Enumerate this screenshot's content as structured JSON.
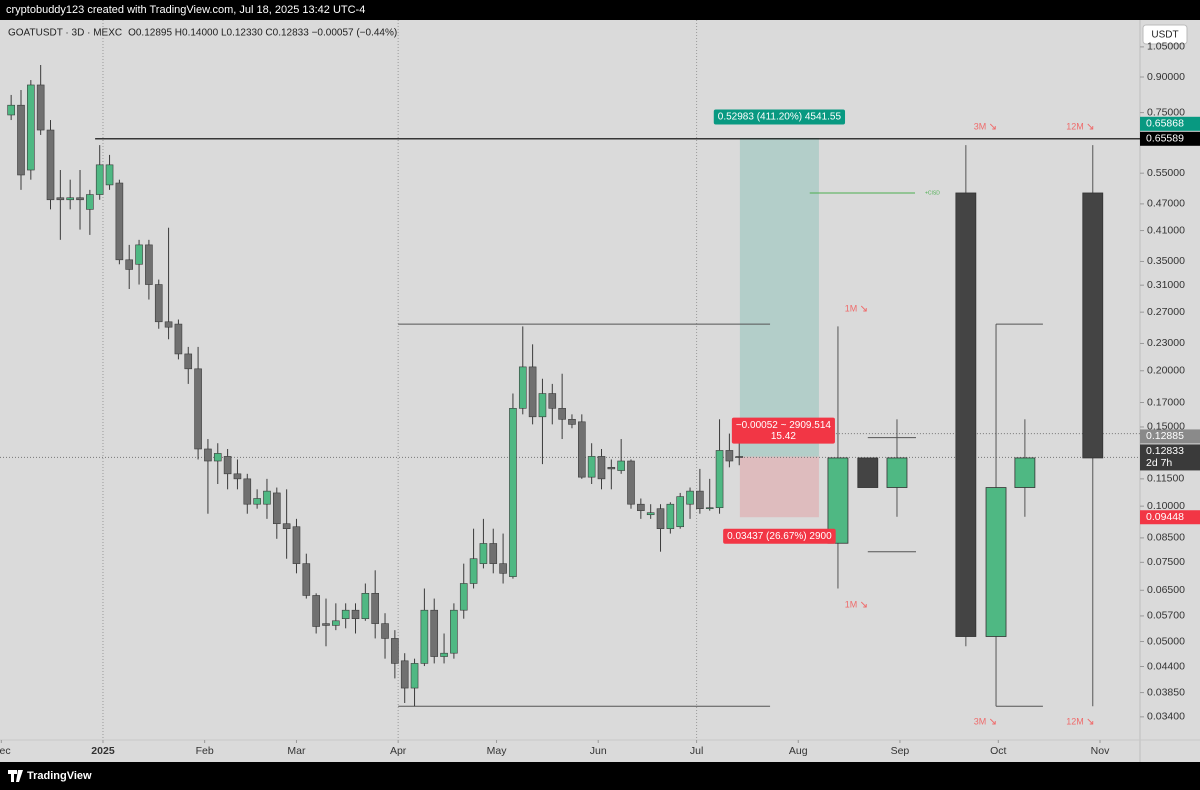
{
  "header": {
    "credit": "cryptobuddy123 created with TradingView.com, Jul 18, 2025 13:42 UTC-4"
  },
  "footer": {
    "brand": "TradingView"
  },
  "chart_data": {
    "type": "candlestick",
    "title": "GOATUSDT · 3D · MEXC",
    "subtitle": "O0.12895 H0.14000 L0.12330 C0.12833 −0.00057 (−0.44%)",
    "currency": "USDT",
    "log_scale": true,
    "grid": false,
    "ylim": [
      0.0302,
      1.205
    ],
    "yticks": [
      {
        "value": 1.05,
        "label": "1.05000"
      },
      {
        "value": 0.9,
        "label": "0.90000"
      },
      {
        "value": 0.75,
        "label": "0.75000"
      },
      {
        "value": 0.55,
        "label": "0.55000"
      },
      {
        "value": 0.47,
        "label": "0.47000"
      },
      {
        "value": 0.41,
        "label": "0.41000"
      },
      {
        "value": 0.35,
        "label": "0.35000"
      },
      {
        "value": 0.31,
        "label": "0.31000"
      },
      {
        "value": 0.27,
        "label": "0.27000"
      },
      {
        "value": 0.23,
        "label": "0.23000"
      },
      {
        "value": 0.2,
        "label": "0.20000"
      },
      {
        "value": 0.17,
        "label": "0.17000"
      },
      {
        "value": 0.15,
        "label": "0.15000"
      },
      {
        "value": 0.115,
        "label": "0.11500"
      },
      {
        "value": 0.1,
        "label": "0.10000"
      },
      {
        "value": 0.085,
        "label": "0.08500"
      },
      {
        "value": 0.075,
        "label": "0.07500"
      },
      {
        "value": 0.065,
        "label": "0.06500"
      },
      {
        "value": 0.057,
        "label": "0.05700"
      },
      {
        "value": 0.05,
        "label": "0.05000"
      },
      {
        "value": 0.044,
        "label": "0.04400"
      },
      {
        "value": 0.0385,
        "label": "0.03850"
      },
      {
        "value": 0.034,
        "label": "0.03400"
      }
    ],
    "xlim": [
      -31.4,
      316.2
    ],
    "xticks": [
      {
        "value": -31,
        "label": "Dec"
      },
      {
        "value": 0,
        "label": "2025"
      },
      {
        "value": 31,
        "label": "Feb"
      },
      {
        "value": 59,
        "label": "Mar"
      },
      {
        "value": 90,
        "label": "Apr"
      },
      {
        "value": 120,
        "label": "May"
      },
      {
        "value": 151,
        "label": "Jun"
      },
      {
        "value": 181,
        "label": "Jul"
      },
      {
        "value": 212,
        "label": "Aug"
      },
      {
        "value": 243,
        "label": "Sep"
      },
      {
        "value": 273,
        "label": "Oct"
      },
      {
        "value": 304,
        "label": "Nov"
      }
    ],
    "vlines": [
      0,
      90,
      181
    ],
    "x": [
      -28,
      -25,
      -22,
      -19,
      -16,
      -13,
      -10,
      -7,
      -4,
      -1,
      2,
      5,
      8,
      11,
      14,
      17,
      20,
      23,
      26,
      29,
      32,
      35,
      38,
      41,
      44,
      47,
      50,
      53,
      56,
      59,
      62,
      65,
      68,
      71,
      74,
      77,
      80,
      83,
      86,
      89,
      92,
      95,
      98,
      101,
      104,
      107,
      110,
      113,
      116,
      119,
      122,
      125,
      128,
      131,
      134,
      137,
      140,
      143,
      146,
      149,
      152,
      155,
      158,
      161,
      164,
      167,
      170,
      173,
      176,
      179,
      182,
      185,
      188,
      191,
      194
    ],
    "open": [
      0.741,
      0.779,
      0.559,
      0.864,
      0.686,
      0.485,
      0.48,
      0.485,
      0.457,
      0.493,
      0.518,
      0.523,
      0.353,
      0.345,
      0.381,
      0.311,
      0.257,
      0.254,
      0.218,
      0.202,
      0.134,
      0.126,
      0.129,
      0.118,
      0.115,
      0.101,
      0.101,
      0.107,
      0.0914,
      0.09,
      0.0745,
      0.0633,
      0.0548,
      0.0543,
      0.0562,
      0.0587,
      0.0562,
      0.064,
      0.0548,
      0.0508,
      0.0453,
      0.0394,
      0.0447,
      0.0587,
      0.0463,
      0.0471,
      0.0587,
      0.0673,
      0.0745,
      0.0826,
      0.0745,
      0.0697,
      0.165,
      0.204,
      0.158,
      0.178,
      0.165,
      0.156,
      0.154,
      0.116,
      0.129,
      0.122,
      0.12,
      0.126,
      0.101,
      0.0957,
      0.0987,
      0.0891,
      0.09,
      0.101,
      0.108,
      0.0987,
      0.0992,
      0.133,
      0.12895
    ],
    "high": [
      0.821,
      0.842,
      0.886,
      0.957,
      0.722,
      0.559,
      0.532,
      0.559,
      0.505,
      0.635,
      0.604,
      0.532,
      0.381,
      0.391,
      0.391,
      0.319,
      0.416,
      0.26,
      0.226,
      0.226,
      0.141,
      0.138,
      0.134,
      0.127,
      0.118,
      0.109,
      0.115,
      0.11,
      0.109,
      0.0937,
      0.0784,
      0.064,
      0.0623,
      0.0608,
      0.0608,
      0.0608,
      0.0673,
      0.072,
      0.0578,
      0.053,
      0.0471,
      0.0458,
      0.0656,
      0.0623,
      0.0521,
      0.0608,
      0.0745,
      0.0891,
      0.0937,
      0.0891,
      0.0869,
      0.178,
      0.251,
      0.229,
      0.192,
      0.187,
      0.197,
      0.16,
      0.16,
      0.138,
      0.134,
      0.127,
      0.141,
      0.127,
      0.104,
      0.101,
      0.101,
      0.102,
      0.107,
      0.11,
      0.121,
      0.115,
      0.156,
      0.145,
      0.14
    ],
    "low": [
      0.722,
      0.505,
      0.532,
      0.669,
      0.457,
      0.391,
      0.457,
      0.412,
      0.401,
      0.48,
      0.505,
      0.345,
      0.304,
      0.311,
      0.288,
      0.248,
      0.235,
      0.212,
      0.187,
      0.127,
      0.0962,
      0.112,
      0.109,
      0.109,
      0.0962,
      0.0987,
      0.0937,
      0.0846,
      0.0764,
      0.0709,
      0.0623,
      0.0521,
      0.0488,
      0.053,
      0.0535,
      0.0521,
      0.0556,
      0.0508,
      0.0458,
      0.0414,
      0.0365,
      0.0359,
      0.0441,
      0.0447,
      0.0447,
      0.0458,
      0.0562,
      0.0656,
      0.0727,
      0.0709,
      0.0673,
      0.069,
      0.16,
      0.152,
      0.124,
      0.152,
      0.141,
      0.149,
      0.115,
      0.112,
      0.109,
      0.109,
      0.118,
      0.0987,
      0.0937,
      0.0937,
      0.0792,
      0.0869,
      0.0891,
      0.0937,
      0.0962,
      0.0977,
      0.0962,
      0.122,
      0.1233
    ],
    "close": [
      0.779,
      0.545,
      0.864,
      0.686,
      0.48,
      0.48,
      0.485,
      0.48,
      0.493,
      0.574,
      0.574,
      0.353,
      0.336,
      0.381,
      0.311,
      0.257,
      0.25,
      0.218,
      0.202,
      0.134,
      0.126,
      0.131,
      0.118,
      0.115,
      0.101,
      0.104,
      0.108,
      0.0914,
      0.0891,
      0.0745,
      0.0633,
      0.054,
      0.0543,
      0.0556,
      0.0587,
      0.0562,
      0.064,
      0.0548,
      0.0508,
      0.0447,
      0.0394,
      0.0447,
      0.0587,
      0.0463,
      0.0471,
      0.0587,
      0.0673,
      0.0764,
      0.0826,
      0.0745,
      0.0709,
      0.165,
      0.204,
      0.158,
      0.178,
      0.165,
      0.156,
      0.152,
      0.116,
      0.129,
      0.115,
      0.121,
      0.126,
      0.101,
      0.0977,
      0.0967,
      0.0891,
      0.101,
      0.105,
      0.108,
      0.0987,
      0.0992,
      0.133,
      0.126,
      0.12833
    ],
    "up_color": "#4fb883",
    "down_color": "#707070",
    "countdown": "2d 7h",
    "projections": {
      "down_color": "#444444",
      "candles": [
        {
          "x": 224.1,
          "open": 0.0827,
          "high": 0.251,
          "low": 0.0656,
          "close": 0.128
        },
        {
          "x": 233.2,
          "open": 0.128,
          "high": 0.128,
          "low": 0.11,
          "close": 0.11
        },
        {
          "x": 242.1,
          "open": 0.11,
          "high": 0.156,
          "low": 0.0947,
          "close": 0.128
        },
        {
          "x": 263.1,
          "open": 0.497,
          "high": 0.635,
          "low": 0.0488,
          "close": 0.0513
        },
        {
          "x": 272.3,
          "open": 0.0513,
          "high": 0.254,
          "low": 0.0359,
          "close": 0.11
        },
        {
          "x": 281.1,
          "open": 0.11,
          "high": 0.156,
          "low": 0.0947,
          "close": 0.128
        },
        {
          "x": 301.8,
          "open": 0.497,
          "high": 0.635,
          "low": 0.0359,
          "close": 0.128
        }
      ]
    },
    "lines": [
      {
        "value": 0.65589,
        "x": [
          -2.4,
          316.2
        ],
        "color": "#000000",
        "style": "solid",
        "label_color": "#000000"
      },
      {
        "value": 0.254,
        "x": [
          90,
          203.4
        ],
        "color": "#555555",
        "style": "solid"
      },
      {
        "value": 0.0359,
        "x": [
          90,
          203.4
        ],
        "color": "#555555",
        "style": "solid"
      },
      {
        "value": 0.142,
        "x": [
          233.2,
          247.9
        ],
        "color": "#555555",
        "style": "solid"
      },
      {
        "value": 0.0792,
        "x": [
          233.2,
          247.9
        ],
        "color": "#555555",
        "style": "solid"
      },
      {
        "value": 0.254,
        "x": [
          272.3,
          286.6
        ],
        "color": "#555555",
        "style": "solid"
      },
      {
        "value": 0.0359,
        "x": [
          272.3,
          286.6
        ],
        "color": "#555555",
        "style": "solid"
      },
      {
        "value": 0.145,
        "x": [
          194.2,
          316.2
        ],
        "color": "#777777",
        "style": "dotted"
      }
    ],
    "cisd": {
      "text": "+CISD",
      "value": 0.497,
      "x": [
        215.5,
        247.6
      ],
      "color": "#4caf50"
    },
    "annotations": [
      "1M",
      "1M",
      "3M",
      "3M",
      "12M",
      "12M"
    ],
    "annotation_color": "#ef6b6b",
    "position": {
      "entry": 0.12885,
      "target": 0.65868,
      "stop": 0.09448,
      "x": [
        194.2,
        218.3
      ],
      "target_color": "#089981",
      "stop_color": "#f23645",
      "entry_color": "#8a8a8a",
      "target_label": "0.52983 (411.20%) 4541.55",
      "stop_label": "0.03437 (26.67%) 2900",
      "center_label": [
        "−0.00052 ~ 2909.514",
        "15.42"
      ]
    }
  }
}
